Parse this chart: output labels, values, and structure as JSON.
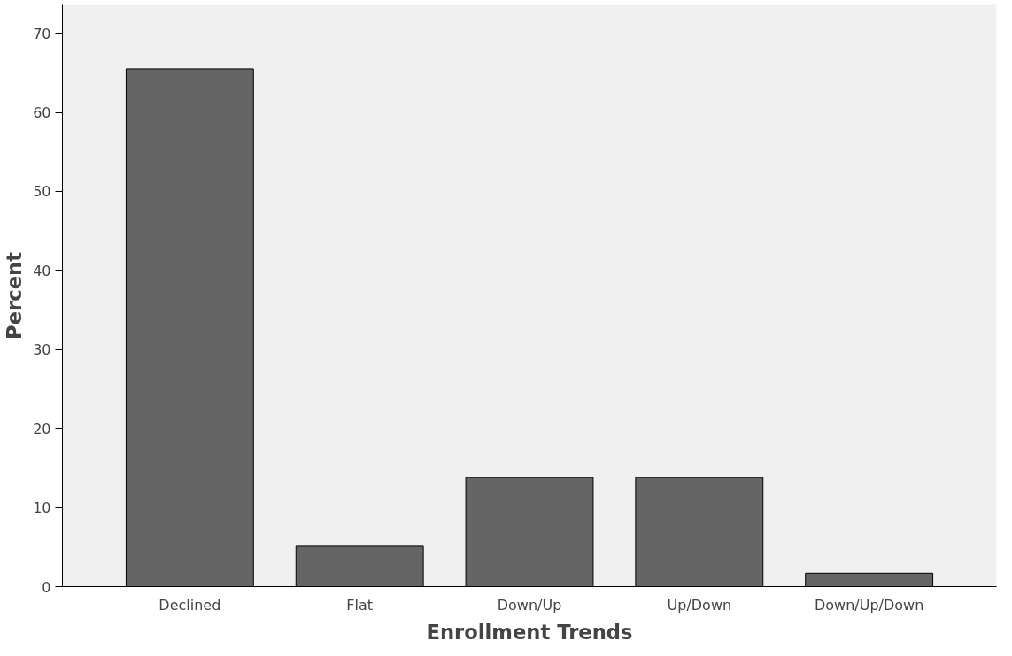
{
  "chart_data": {
    "type": "bar",
    "xlabel": "Enrollment Trends",
    "ylabel": "Percent",
    "categories": [
      "Declined",
      "Flat",
      "Down/Up",
      "Up/Down",
      "Down/Up/Down"
    ],
    "values": [
      65.5,
      5.1,
      13.8,
      13.8,
      1.7
    ],
    "color": "#656565",
    "ylim": [
      0,
      73.6
    ],
    "yticks": [
      0,
      10,
      20,
      30,
      40,
      50,
      60,
      70
    ],
    "grid": false
  }
}
